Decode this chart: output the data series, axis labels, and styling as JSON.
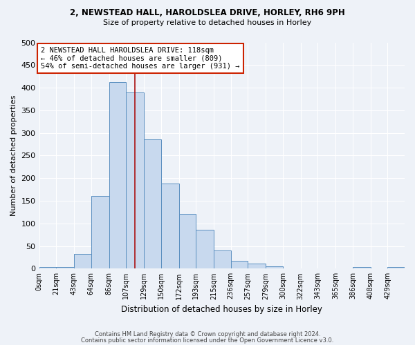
{
  "title1": "2, NEWSTEAD HALL, HAROLDSLEA DRIVE, HORLEY, RH6 9PH",
  "title2": "Size of property relative to detached houses in Horley",
  "xlabel": "Distribution of detached houses by size in Horley",
  "ylabel": "Number of detached properties",
  "footer1": "Contains HM Land Registry data © Crown copyright and database right 2024.",
  "footer2": "Contains public sector information licensed under the Open Government Licence v3.0.",
  "bin_labels": [
    "0sqm",
    "21sqm",
    "43sqm",
    "64sqm",
    "86sqm",
    "107sqm",
    "129sqm",
    "150sqm",
    "172sqm",
    "193sqm",
    "215sqm",
    "236sqm",
    "257sqm",
    "279sqm",
    "300sqm",
    "322sqm",
    "343sqm",
    "365sqm",
    "386sqm",
    "408sqm",
    "429sqm"
  ],
  "bar_values": [
    3,
    3,
    33,
    160,
    412,
    390,
    285,
    188,
    121,
    86,
    40,
    18,
    11,
    5,
    1,
    1,
    0,
    0,
    3,
    0,
    3
  ],
  "bar_color": "#c8d9ee",
  "bar_edge_color": "#5a8fc0",
  "ylim": [
    0,
    500
  ],
  "yticks": [
    0,
    50,
    100,
    150,
    200,
    250,
    300,
    350,
    400,
    450,
    500
  ],
  "vline_x": 118,
  "vline_color": "#aa1111",
  "annotation_text": "2 NEWSTEAD HALL HAROLDSLEA DRIVE: 118sqm\n← 46% of detached houses are smaller (809)\n54% of semi-detached houses are larger (931) →",
  "annotation_box_color": "#ffffff",
  "annotation_box_edge": "#cc2200",
  "bg_color": "#eef2f8",
  "grid_color": "#ffffff",
  "bin_edges": [
    0,
    21,
    43,
    64,
    86,
    107,
    129,
    150,
    172,
    193,
    215,
    236,
    257,
    279,
    300,
    322,
    343,
    365,
    386,
    408,
    429,
    450
  ]
}
